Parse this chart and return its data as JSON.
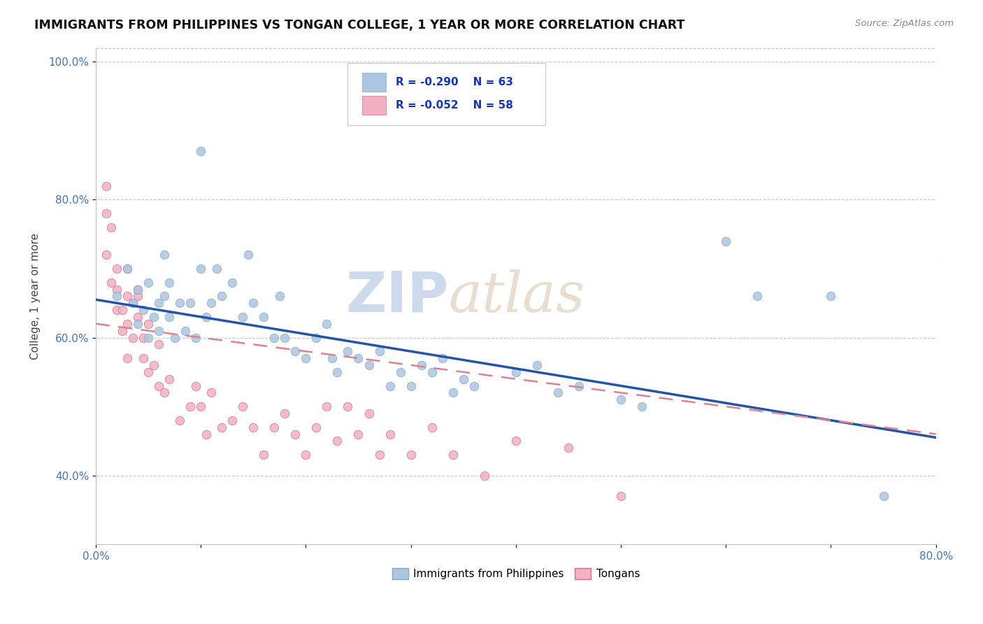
{
  "title": "IMMIGRANTS FROM PHILIPPINES VS TONGAN COLLEGE, 1 YEAR OR MORE CORRELATION CHART",
  "source_text": "Source: ZipAtlas.com",
  "xlabel": "",
  "ylabel": "College, 1 year or more",
  "xlim": [
    0.0,
    0.8
  ],
  "ylim": [
    0.3,
    1.02
  ],
  "xticks": [
    0.0,
    0.1,
    0.2,
    0.3,
    0.4,
    0.5,
    0.6,
    0.7,
    0.8
  ],
  "xticklabels": [
    "0.0%",
    "",
    "",
    "",
    "",
    "",
    "",
    "",
    "80.0%"
  ],
  "yticks": [
    0.4,
    0.6,
    0.8,
    1.0
  ],
  "yticklabels": [
    "40.0%",
    "60.0%",
    "80.0%",
    "100.0%"
  ],
  "legend_R1": "R = -0.290",
  "legend_N1": "N = 63",
  "legend_R2": "R = -0.052",
  "legend_N2": "N = 58",
  "legend_label1": "Immigrants from Philippines",
  "legend_label2": "Tongans",
  "blue_color": "#adc6e0",
  "blue_edge": "#7aaac8",
  "blue_line_color": "#2255aa",
  "pink_color": "#f4afc0",
  "pink_edge": "#d07090",
  "pink_line_color": "#e08090",
  "watermark": "ZIPatlas",
  "watermark_color": "#ccdaec",
  "blue_x": [
    0.02,
    0.03,
    0.035,
    0.04,
    0.04,
    0.045,
    0.05,
    0.05,
    0.055,
    0.06,
    0.06,
    0.065,
    0.065,
    0.07,
    0.07,
    0.075,
    0.08,
    0.085,
    0.09,
    0.095,
    0.1,
    0.1,
    0.105,
    0.11,
    0.115,
    0.12,
    0.13,
    0.14,
    0.145,
    0.15,
    0.16,
    0.17,
    0.175,
    0.18,
    0.19,
    0.2,
    0.21,
    0.22,
    0.225,
    0.23,
    0.24,
    0.25,
    0.26,
    0.27,
    0.28,
    0.29,
    0.3,
    0.31,
    0.32,
    0.33,
    0.34,
    0.35,
    0.36,
    0.4,
    0.42,
    0.44,
    0.46,
    0.5,
    0.52,
    0.6,
    0.63,
    0.7,
    0.75
  ],
  "blue_y": [
    0.66,
    0.7,
    0.65,
    0.67,
    0.62,
    0.64,
    0.68,
    0.6,
    0.63,
    0.65,
    0.61,
    0.72,
    0.66,
    0.63,
    0.68,
    0.6,
    0.65,
    0.61,
    0.65,
    0.6,
    0.87,
    0.7,
    0.63,
    0.65,
    0.7,
    0.66,
    0.68,
    0.63,
    0.72,
    0.65,
    0.63,
    0.6,
    0.66,
    0.6,
    0.58,
    0.57,
    0.6,
    0.62,
    0.57,
    0.55,
    0.58,
    0.57,
    0.56,
    0.58,
    0.53,
    0.55,
    0.53,
    0.56,
    0.55,
    0.57,
    0.52,
    0.54,
    0.53,
    0.55,
    0.56,
    0.52,
    0.53,
    0.51,
    0.5,
    0.74,
    0.66,
    0.66,
    0.37
  ],
  "pink_x": [
    0.01,
    0.01,
    0.01,
    0.015,
    0.015,
    0.02,
    0.02,
    0.02,
    0.025,
    0.025,
    0.03,
    0.03,
    0.03,
    0.03,
    0.035,
    0.035,
    0.04,
    0.04,
    0.04,
    0.045,
    0.045,
    0.05,
    0.05,
    0.055,
    0.06,
    0.06,
    0.065,
    0.07,
    0.08,
    0.09,
    0.095,
    0.1,
    0.105,
    0.11,
    0.12,
    0.13,
    0.14,
    0.15,
    0.16,
    0.17,
    0.18,
    0.19,
    0.2,
    0.21,
    0.22,
    0.23,
    0.24,
    0.25,
    0.26,
    0.27,
    0.28,
    0.3,
    0.32,
    0.34,
    0.37,
    0.4,
    0.45,
    0.5
  ],
  "pink_y": [
    0.82,
    0.78,
    0.72,
    0.76,
    0.68,
    0.7,
    0.67,
    0.64,
    0.61,
    0.64,
    0.7,
    0.66,
    0.62,
    0.57,
    0.65,
    0.6,
    0.66,
    0.63,
    0.67,
    0.57,
    0.6,
    0.62,
    0.55,
    0.56,
    0.59,
    0.53,
    0.52,
    0.54,
    0.48,
    0.5,
    0.53,
    0.5,
    0.46,
    0.52,
    0.47,
    0.48,
    0.5,
    0.47,
    0.43,
    0.47,
    0.49,
    0.46,
    0.43,
    0.47,
    0.5,
    0.45,
    0.5,
    0.46,
    0.49,
    0.43,
    0.46,
    0.43,
    0.47,
    0.43,
    0.4,
    0.45,
    0.44,
    0.37
  ],
  "blue_line_x0": 0.0,
  "blue_line_x1": 0.8,
  "blue_line_y0": 0.655,
  "blue_line_y1": 0.455,
  "pink_line_x0": 0.0,
  "pink_line_x1": 0.8,
  "pink_line_y0": 0.62,
  "pink_line_y1": 0.46
}
